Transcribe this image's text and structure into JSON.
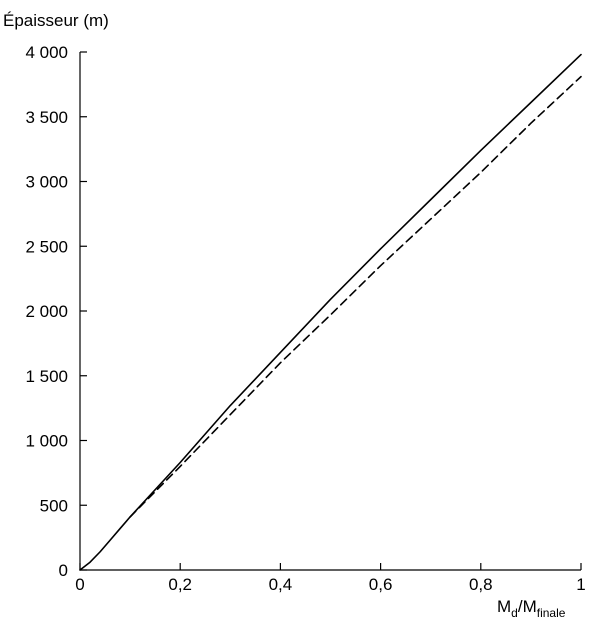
{
  "chart_data": {
    "type": "line",
    "ylabel": "Épaisseur (m)",
    "xlabel": {
      "main1": "M",
      "sub1": "d",
      "sep": "/M",
      "sub2": "finale"
    },
    "xlim": [
      0,
      1
    ],
    "ylim": [
      0,
      4000
    ],
    "x_ticks": [
      {
        "value": 0,
        "label": "0"
      },
      {
        "value": 0.2,
        "label": "0,2"
      },
      {
        "value": 0.4,
        "label": "0,4"
      },
      {
        "value": 0.6,
        "label": "0,6"
      },
      {
        "value": 0.8,
        "label": "0,8"
      },
      {
        "value": 1,
        "label": "1"
      }
    ],
    "y_ticks": [
      {
        "value": 0,
        "label": "0"
      },
      {
        "value": 500,
        "label": "500"
      },
      {
        "value": 1000,
        "label": "1 000"
      },
      {
        "value": 1500,
        "label": "1 500"
      },
      {
        "value": 2000,
        "label": "2 000"
      },
      {
        "value": 2500,
        "label": "2 500"
      },
      {
        "value": 3000,
        "label": "3 000"
      },
      {
        "value": 3500,
        "label": "3 500"
      },
      {
        "value": 4000,
        "label": "4 000"
      }
    ],
    "grid": false,
    "series": [
      {
        "style": "solid",
        "color": "#000000",
        "x": [
          0,
          0.02,
          0.04,
          0.06,
          0.08,
          0.1,
          0.2,
          0.3,
          0.4,
          0.5,
          0.6,
          0.7,
          0.8,
          0.9,
          1.0
        ],
        "y": [
          0,
          60,
          140,
          230,
          320,
          410,
          830,
          1270,
          1680,
          2090,
          2480,
          2860,
          3240,
          3610,
          3980
        ]
      },
      {
        "style": "dashed",
        "color": "#000000",
        "x": [
          0.1,
          0.2,
          0.3,
          0.4,
          0.5,
          0.6,
          0.7,
          0.8,
          0.9,
          1.0
        ],
        "y": [
          410,
          800,
          1200,
          1600,
          1970,
          2350,
          2710,
          3070,
          3450,
          3810
        ]
      }
    ]
  }
}
